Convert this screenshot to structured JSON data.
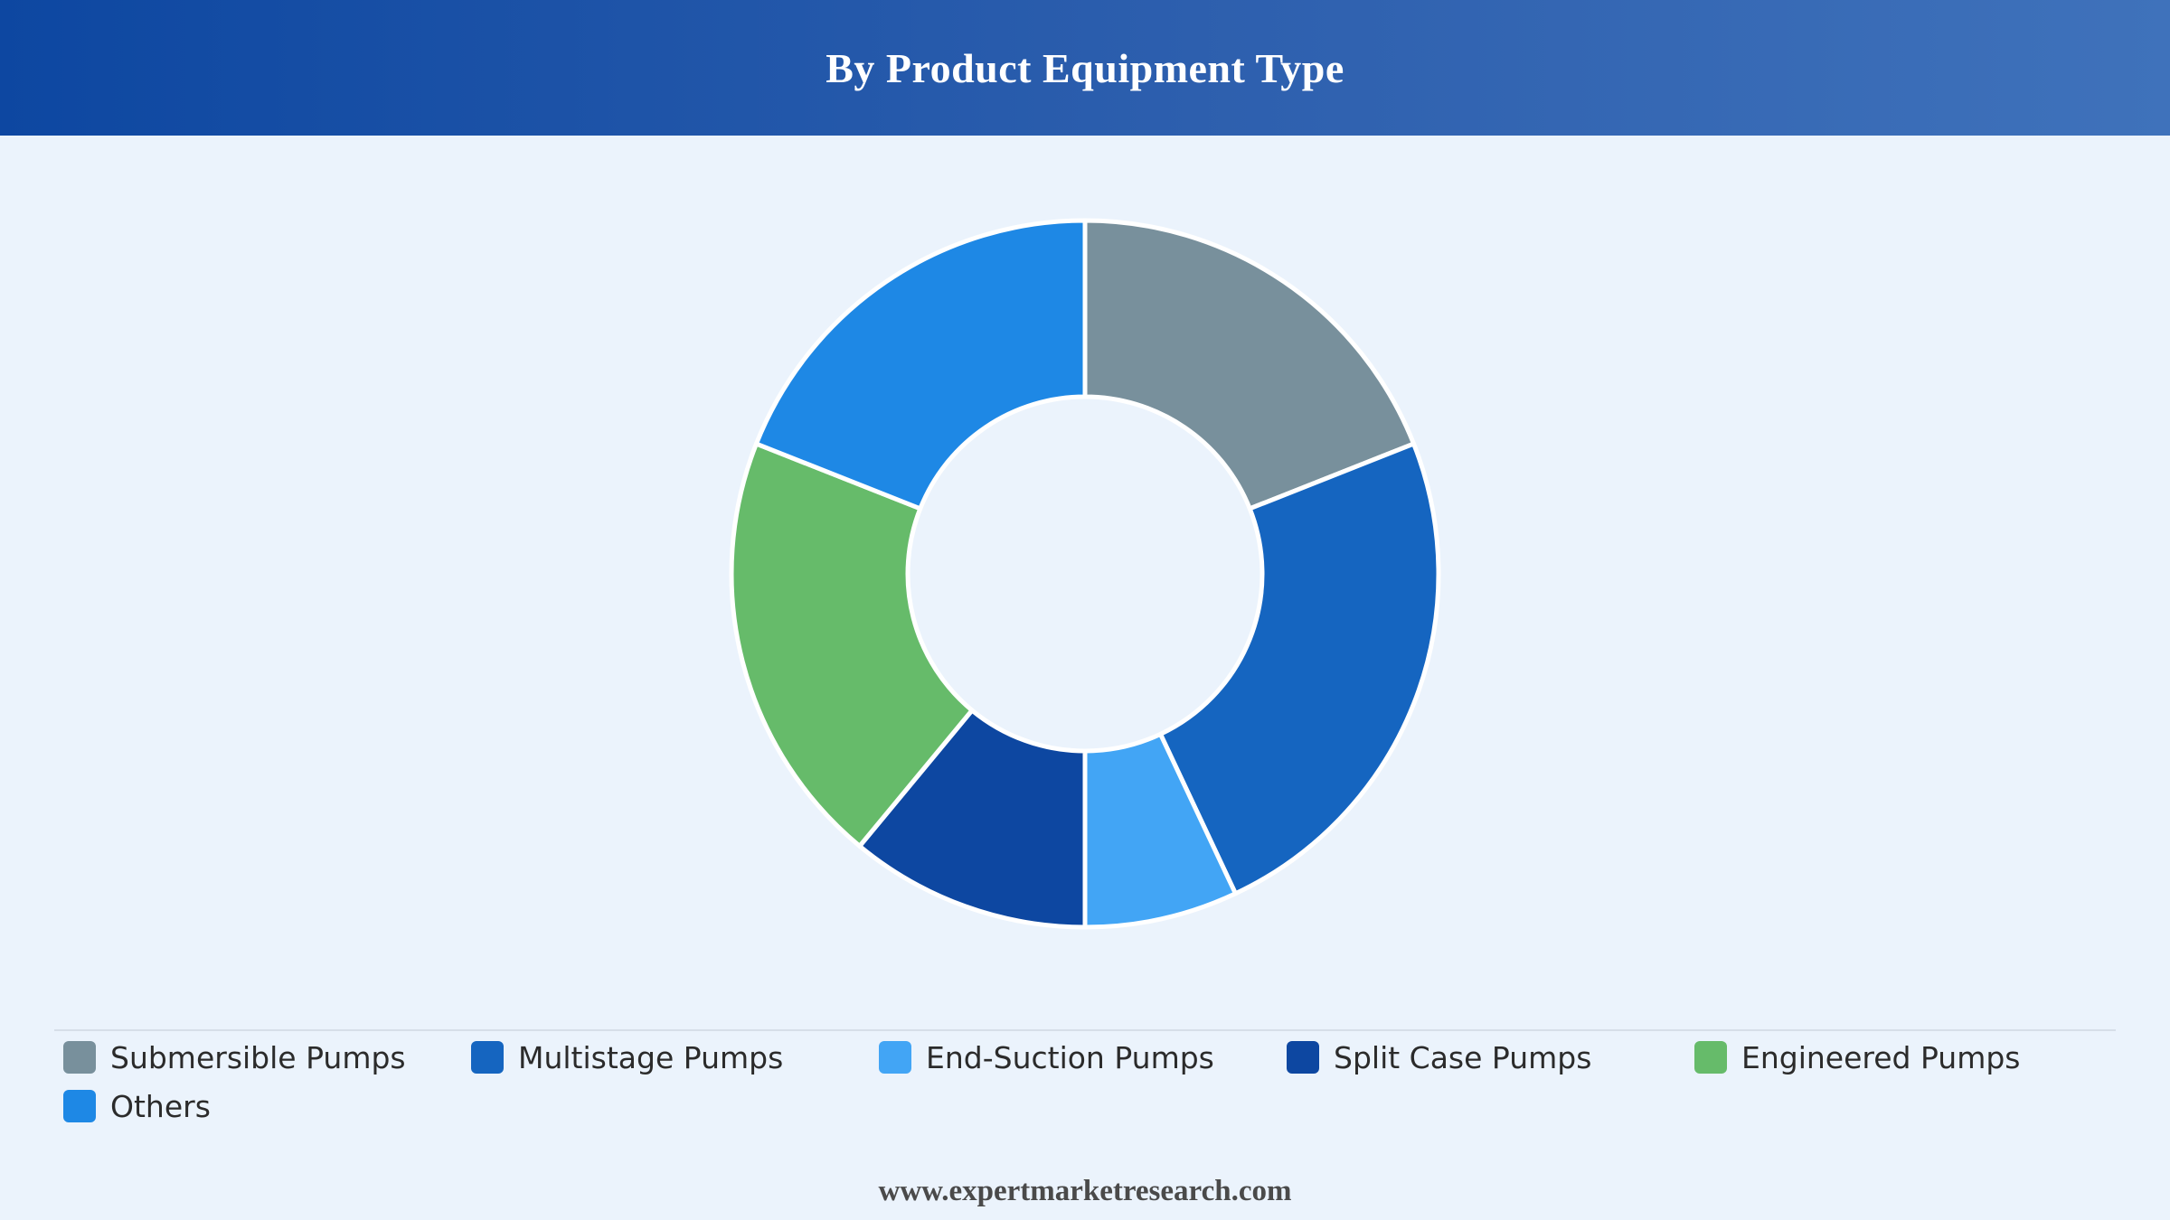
{
  "header": {
    "title": "By Product Equipment Type"
  },
  "chart_data": {
    "type": "pie",
    "subtype": "donut",
    "categories": [
      "Submersible Pumps",
      "Multistage Pumps",
      "End-Suction Pumps",
      "Split Case Pumps",
      "Engineered Pumps",
      "Others"
    ],
    "values": [
      19,
      24,
      7,
      11,
      20,
      19
    ],
    "colors": [
      "#78909c",
      "#1565c0",
      "#42a5f5",
      "#0d47a1",
      "#66bb6a",
      "#1e88e5"
    ],
    "start_angle_deg": 0,
    "direction": "clockwise",
    "legend_position": "bottom"
  },
  "legend": {
    "items": [
      {
        "label": "Submersible Pumps",
        "color": "#78909c"
      },
      {
        "label": "Multistage Pumps",
        "color": "#1565c0"
      },
      {
        "label": "End-Suction Pumps",
        "color": "#42a5f5"
      },
      {
        "label": "Split Case Pumps",
        "color": "#0d47a1"
      },
      {
        "label": "Engineered Pumps",
        "color": "#66bb6a"
      },
      {
        "label": "Others",
        "color": "#1e88e5"
      }
    ]
  },
  "footer": {
    "source": "www.expertmarketresearch.com"
  }
}
